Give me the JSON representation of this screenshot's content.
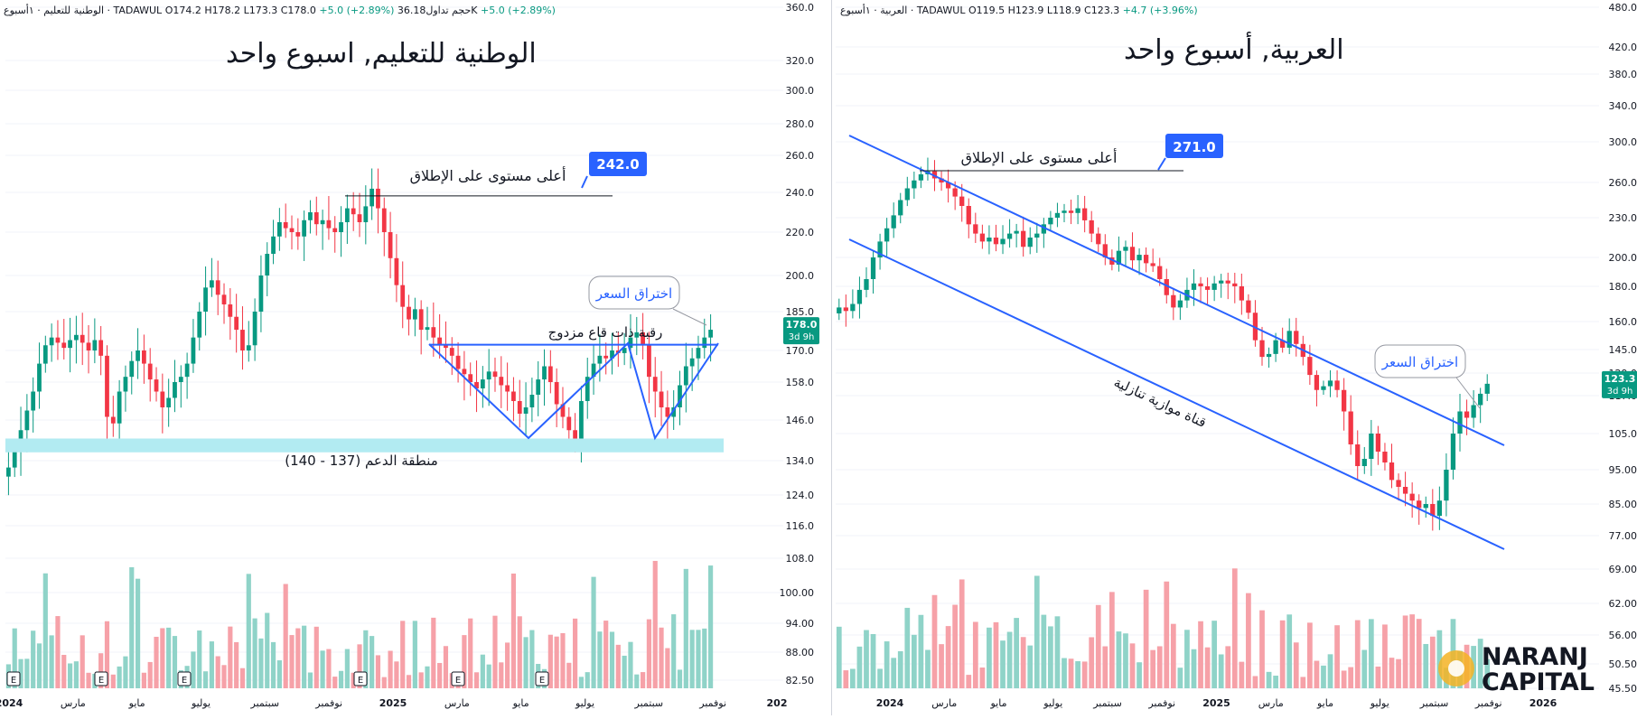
{
  "panels": [
    {
      "id": "left",
      "header": {
        "symbol": "الوطنية للتعليم · ١أسبوع · TADAWUL",
        "o": "O174.2",
        "h": "H178.2",
        "l": "L173.3",
        "c": "C178.0",
        "chg": "+5.0 (+2.89%)",
        "vol_label": "حجم تداول",
        "vol": "36.18K",
        "vol_chg": "+5.0 (+2.89%)"
      },
      "title": "الوطنية للتعليم, اسبوع واحد",
      "last_price": "178.0",
      "last_time": "3d 9h",
      "colors": {
        "up": "#089981",
        "down": "#f23645",
        "vol_up": "#8fd3c8",
        "vol_down": "#f6a1a8",
        "line": "#2962ff",
        "zone": "#b2ebf2"
      }
    },
    {
      "id": "right",
      "header": {
        "symbol": "العربية · ١أسبوع · TADAWUL",
        "o": "O119.5",
        "h": "H123.9",
        "l": "L118.9",
        "c": "C123.3",
        "chg": "+4.7 (+3.96%)"
      },
      "title": "العربية, أسبوع واحد",
      "last_price": "123.3",
      "last_time": "3d 9h",
      "colors": {
        "up": "#089981",
        "down": "#f23645",
        "vol_up": "#8fd3c8",
        "vol_down": "#f6a1a8",
        "line": "#2962ff"
      }
    }
  ],
  "chart_data": [
    {
      "type": "candlestick",
      "title": "الوطنية للتعليم, اسبوع واحد",
      "y_ticks": [
        82.5,
        88.0,
        94.0,
        100.0,
        108.0,
        116.0,
        124.0,
        134.0,
        146.0,
        158.0,
        170.0,
        185.0,
        200.0,
        220.0,
        240.0,
        260.0,
        280.0,
        300.0,
        320.0,
        360.0
      ],
      "y_tick_labels": [
        "82.50",
        "88.00",
        "94.00",
        "100.00",
        "108.0",
        "116.0",
        "124.0",
        "134.0",
        "146.0",
        "158.0",
        "170.0",
        "185.0",
        "200.0",
        "220.0",
        "240.0",
        "260.0",
        "280.0",
        "300.0",
        "320.0",
        "360.0"
      ],
      "x_labels": [
        "2024",
        "مارس",
        "مايو",
        "يوليو",
        "سبتمبر",
        "نوفمبر",
        "2025",
        "مارس",
        "مايو",
        "يوليو",
        "سبتمبر",
        "نوفمبر",
        "202"
      ],
      "closes": [
        132,
        137,
        143,
        149,
        155,
        165,
        172,
        175,
        173,
        171,
        174,
        176,
        173,
        170,
        174,
        168,
        147,
        145,
        155,
        160,
        166,
        170,
        165,
        159,
        155,
        150,
        153,
        158,
        160,
        165,
        175,
        185,
        195,
        198,
        192,
        188,
        183,
        178,
        170,
        172,
        185,
        200,
        210,
        218,
        225,
        222,
        220,
        218,
        226,
        230,
        224,
        226,
        222,
        220,
        225,
        232,
        229,
        225,
        233,
        242,
        232,
        220,
        208,
        196,
        187,
        182,
        186,
        178,
        179,
        175,
        172,
        171,
        168,
        163,
        161,
        158,
        156,
        159,
        162,
        160,
        157,
        155,
        152,
        148,
        150,
        154,
        159,
        164,
        158,
        151,
        147,
        143,
        140,
        152,
        160,
        165,
        168,
        167,
        170,
        169,
        171,
        175,
        177,
        172,
        160,
        155,
        150,
        147,
        150,
        157,
        164,
        167,
        171,
        175,
        178
      ],
      "events_label": "E",
      "annotations": [
        {
          "text": "أعلى مستوى على الإطلاق",
          "value": 242.0,
          "badge": "242.0"
        },
        {
          "text": "اختراق السعر"
        },
        {
          "text": "رقبة ذات قاع مزدوج",
          "value": 175.0
        },
        {
          "text": "منطقة الدعم (137 - 140)",
          "range": [
            137,
            140
          ]
        }
      ]
    },
    {
      "type": "candlestick",
      "title": "العربية, أسبوع واحد",
      "y_ticks": [
        45.5,
        50.5,
        56.0,
        62.0,
        69.0,
        77.0,
        85.0,
        95.0,
        105.0,
        117.0,
        129.0,
        145.0,
        160.0,
        180.0,
        200.0,
        230.0,
        260.0,
        300.0,
        340.0,
        380.0,
        420.0,
        480.0
      ],
      "y_tick_labels": [
        "45.50",
        "50.50",
        "56.00",
        "62.00",
        "69.00",
        "77.00",
        "85.00",
        "95.00",
        "105.0",
        "117.0",
        "129.0",
        "145.0",
        "160.0",
        "180.0",
        "200.0",
        "230.0",
        "260.0",
        "300.0",
        "340.0",
        "380.0",
        "420.0",
        "480.0"
      ],
      "x_labels": [
        "2024",
        "مارس",
        "مايو",
        "يوليو",
        "سبتمبر",
        "نوفمبر",
        "2025",
        "مارس",
        "مايو",
        "يوليو",
        "سبتمبر",
        "نوفمبر",
        "2026"
      ],
      "closes": [
        168,
        166,
        170,
        178,
        185,
        200,
        212,
        222,
        232,
        245,
        255,
        262,
        268,
        271,
        264,
        260,
        255,
        248,
        240,
        225,
        218,
        212,
        215,
        210,
        214,
        218,
        220,
        208,
        215,
        218,
        225,
        230,
        234,
        236,
        234,
        238,
        228,
        218,
        210,
        200,
        195,
        205,
        208,
        198,
        202,
        196,
        194,
        185,
        175,
        168,
        172,
        178,
        182,
        180,
        178,
        182,
        184,
        182,
        180,
        172,
        165,
        150,
        140,
        142,
        150,
        146,
        155,
        148,
        140,
        128,
        120,
        122,
        125,
        120,
        112,
        102,
        96,
        98,
        105,
        100,
        97,
        92,
        90,
        88,
        86,
        84,
        85,
        82,
        86,
        95,
        105,
        112,
        110,
        114,
        118,
        123.3
      ],
      "annotations": [
        {
          "text": "أعلى مستوى على الإطلاق",
          "value": 271.0,
          "badge": "271.0"
        },
        {
          "text": "اختراق السعر"
        },
        {
          "text": "قناة موازية تنازلية"
        }
      ]
    }
  ],
  "watermark": {
    "line1": "NARANJ",
    "line2": "CAPITAL"
  }
}
